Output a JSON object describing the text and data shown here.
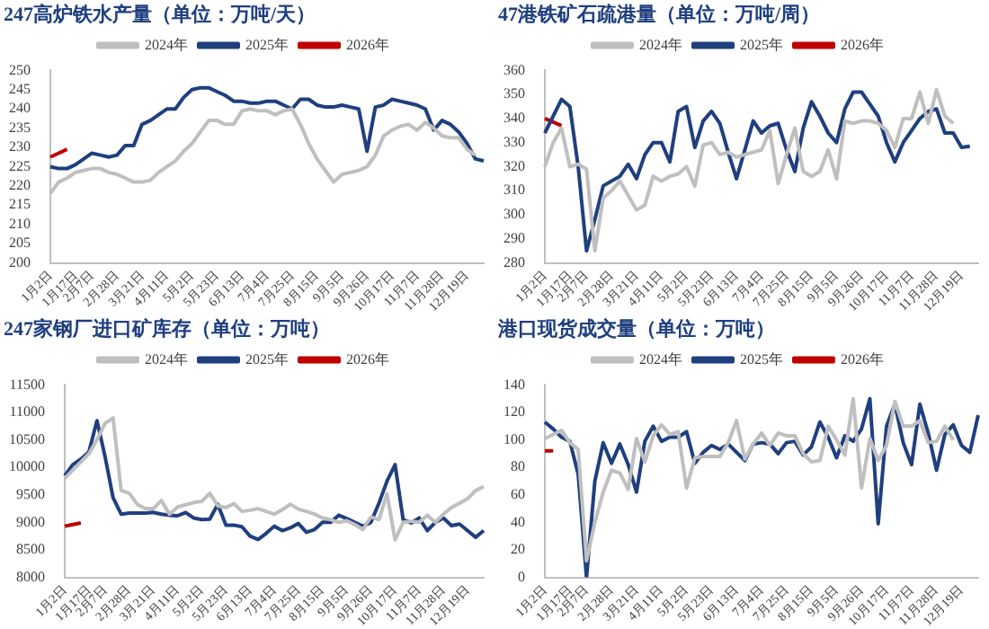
{
  "chart_data": [
    {
      "type": "line",
      "title": "247高炉铁水产量（单位：万吨/天）",
      "categories": [
        "1月2日",
        null,
        null,
        "1月17日",
        null,
        "2月7日",
        null,
        null,
        "2月28日",
        null,
        null,
        "3月21日",
        null,
        null,
        "4月11日",
        null,
        null,
        "5月2日",
        null,
        null,
        "5月23日",
        null,
        null,
        "6月13日",
        null,
        null,
        "7月4日",
        null,
        null,
        "7月25日",
        null,
        null,
        "8月15日",
        null,
        null,
        "9月5日",
        null,
        null,
        "9月26日",
        null,
        null,
        "10月17日",
        null,
        null,
        "11月7日",
        null,
        null,
        "11月28日",
        null,
        null,
        "12月19日",
        null,
        null
      ],
      "ylim": [
        200,
        250
      ],
      "yticks": [
        200,
        205,
        210,
        215,
        220,
        225,
        230,
        235,
        240,
        245,
        250
      ],
      "legend": "top",
      "grid": false,
      "marker": "none",
      "series": [
        {
          "name": "2024年",
          "color": "#bfbfbf",
          "values": [
            218,
            221,
            222,
            223.5,
            224,
            224.5,
            224.5,
            223.5,
            223,
            222,
            221,
            221,
            221.5,
            223.5,
            225,
            226.5,
            229,
            231,
            234,
            237,
            237,
            236,
            236,
            239.5,
            240,
            239.5,
            239.5,
            238.5,
            239.5,
            240,
            236,
            231,
            227,
            224,
            221,
            223,
            223.5,
            224,
            225,
            228,
            233,
            234.5,
            235.5,
            236,
            234.5,
            236.5,
            235,
            233,
            232.5,
            232.5,
            229.5,
            228,
            null
          ]
        },
        {
          "name": "2025年",
          "color": "#1f3f7f",
          "values": [
            225,
            224.5,
            224.5,
            225.5,
            227,
            228.5,
            228,
            227.5,
            228,
            230.5,
            230.5,
            236,
            237,
            238.5,
            240,
            240,
            243,
            245,
            245.5,
            245.5,
            244.5,
            243.5,
            242,
            242,
            241.5,
            241.5,
            242,
            242,
            241,
            240,
            242.5,
            242.5,
            241,
            240.5,
            240.5,
            241,
            240.5,
            240,
            229,
            240.5,
            241,
            242.5,
            242,
            241.5,
            241,
            240,
            234.5,
            237,
            236,
            234,
            231,
            227,
            226.5
          ]
        },
        {
          "name": "2026年",
          "color": "#c00000",
          "values": [
            227.5,
            228.5,
            229.5,
            null,
            null,
            null,
            null,
            null,
            null,
            null,
            null,
            null,
            null,
            null,
            null,
            null,
            null,
            null,
            null,
            null,
            null,
            null,
            null,
            null,
            null,
            null,
            null,
            null,
            null,
            null,
            null,
            null,
            null,
            null,
            null,
            null,
            null,
            null,
            null,
            null,
            null,
            null,
            null,
            null,
            null,
            null,
            null,
            null,
            null,
            null,
            null,
            null,
            null
          ]
        }
      ]
    },
    {
      "type": "line",
      "title": "47港铁矿石疏港量（单位：万吨/周）",
      "categories": [
        "1月2日",
        null,
        null,
        "1月17日",
        null,
        "2月7日",
        null,
        null,
        "2月28日",
        null,
        null,
        "3月21日",
        null,
        null,
        "4月11日",
        null,
        null,
        "5月2日",
        null,
        null,
        "5月23日",
        null,
        null,
        "6月13日",
        null,
        null,
        "7月4日",
        null,
        null,
        "7月25日",
        null,
        null,
        "8月15日",
        null,
        null,
        "9月5日",
        null,
        null,
        "9月26日",
        null,
        null,
        "10月17日",
        null,
        null,
        "11月7日",
        null,
        null,
        "11月28日",
        null,
        null,
        "12月19日",
        null,
        null
      ],
      "ylim": [
        280,
        360
      ],
      "yticks": [
        280,
        290,
        300,
        310,
        320,
        330,
        340,
        350,
        360
      ],
      "legend": "top",
      "grid": false,
      "marker": "none",
      "series": [
        {
          "name": "2024年",
          "color": "#bfbfbf",
          "values": [
            320,
            330,
            336,
            320,
            321,
            319,
            285,
            307,
            310,
            314,
            308,
            302,
            304,
            316,
            314,
            316,
            317,
            320,
            312,
            329,
            330,
            325,
            326,
            324,
            325,
            326,
            327,
            335,
            313,
            325,
            336,
            318,
            316,
            318,
            327,
            315,
            339,
            338,
            339,
            339,
            338,
            335,
            328,
            340,
            340,
            351,
            338,
            352,
            341,
            338,
            null,
            null,
            null
          ]
        },
        {
          "name": "2025年",
          "color": "#1f3f7f",
          "values": [
            334,
            341,
            348,
            345,
            320,
            285,
            298,
            312,
            314,
            316,
            321,
            315,
            325,
            330,
            330,
            322,
            343,
            345,
            328,
            339,
            343,
            338,
            326,
            315,
            327,
            339,
            334,
            337,
            338,
            327,
            318,
            336,
            347,
            341,
            334,
            330,
            344,
            351,
            351,
            346,
            341,
            330,
            322,
            330,
            335,
            340,
            343,
            344,
            334,
            334,
            328,
            328.5,
            null
          ]
        },
        {
          "name": "2026年",
          "color": "#c00000",
          "values": [
            340,
            338.5,
            337,
            null,
            null,
            null,
            null,
            null,
            null,
            null,
            null,
            null,
            null,
            null,
            null,
            null,
            null,
            null,
            null,
            null,
            null,
            null,
            null,
            null,
            null,
            null,
            null,
            null,
            null,
            null,
            null,
            null,
            null,
            null,
            null,
            null,
            null,
            null,
            null,
            null,
            null,
            null,
            null,
            null,
            null,
            null,
            null,
            null,
            null,
            null,
            null,
            null,
            null
          ]
        }
      ]
    },
    {
      "type": "line",
      "title": "247家钢厂进口矿库存（单位：万吨）",
      "categories": [
        "1月2日",
        null,
        null,
        "1月17日",
        null,
        "2月7日",
        null,
        null,
        "2月28日",
        null,
        null,
        "3月21日",
        null,
        null,
        "4月11日",
        null,
        null,
        "5月2日",
        null,
        null,
        "5月23日",
        null,
        null,
        "6月13日",
        null,
        null,
        "7月4日",
        null,
        null,
        "7月25日",
        null,
        null,
        "8月15日",
        null,
        null,
        "9月5日",
        null,
        null,
        "9月26日",
        null,
        null,
        "10月17日",
        null,
        null,
        "11月7日",
        null,
        null,
        "11月28日",
        null,
        null,
        "12月19日",
        null,
        null
      ],
      "ylim": [
        8000,
        11500
      ],
      "yticks": [
        8000,
        8500,
        9000,
        9500,
        10000,
        10500,
        11000,
        11500
      ],
      "legend": "top",
      "grid": false,
      "marker": "none",
      "series": [
        {
          "name": "2024年",
          "color": "#bfbfbf",
          "values": [
            9800,
            9950,
            10100,
            10250,
            10500,
            10800,
            10900,
            9580,
            9530,
            9330,
            9250,
            9250,
            9400,
            9150,
            9280,
            9320,
            9360,
            9380,
            9530,
            9300,
            9270,
            9340,
            9200,
            9220,
            9250,
            9200,
            9150,
            9230,
            9330,
            9240,
            9200,
            9150,
            9080,
            9050,
            9000,
            9030,
            8960,
            8870,
            9100,
            9050,
            9520,
            8680,
            9000,
            9020,
            9000,
            9130,
            9000,
            9150,
            9270,
            9350,
            9430,
            9580,
            9650
          ]
        },
        {
          "name": "2025年",
          "color": "#1f3f7f",
          "values": [
            9850,
            10050,
            10150,
            10280,
            10850,
            10200,
            9450,
            9150,
            9170,
            9170,
            9170,
            9180,
            9150,
            9130,
            9120,
            9180,
            9080,
            9050,
            9060,
            9330,
            8950,
            8950,
            8920,
            8750,
            8690,
            8800,
            8930,
            8850,
            8900,
            8980,
            8820,
            8870,
            9000,
            9000,
            9130,
            9070,
            9000,
            8930,
            9000,
            9350,
            9750,
            10050,
            9050,
            8990,
            9080,
            8850,
            9000,
            9080,
            8940,
            8970,
            8850,
            8730,
            8850
          ]
        },
        {
          "name": "2026年",
          "color": "#c00000",
          "values": [
            8930,
            8960,
            8990,
            null,
            null,
            null,
            null,
            null,
            null,
            null,
            null,
            null,
            null,
            null,
            null,
            null,
            null,
            null,
            null,
            null,
            null,
            null,
            null,
            null,
            null,
            null,
            null,
            null,
            null,
            null,
            null,
            null,
            null,
            null,
            null,
            null,
            null,
            null,
            null,
            null,
            null,
            null,
            null,
            null,
            null,
            null,
            null,
            null,
            null,
            null,
            null,
            null,
            null
          ]
        }
      ]
    },
    {
      "type": "line",
      "title": "港口现货成交量（单位：万吨）",
      "categories": [
        "1月2日",
        null,
        null,
        "1月17日",
        null,
        "2月7日",
        null,
        null,
        "2月28日",
        null,
        null,
        "3月21日",
        null,
        null,
        "4月11日",
        null,
        null,
        "5月2日",
        null,
        null,
        "5月23日",
        null,
        null,
        "6月13日",
        null,
        null,
        "7月4日",
        null,
        null,
        "7月25日",
        null,
        null,
        "8月15日",
        null,
        null,
        "9月5日",
        null,
        null,
        "9月26日",
        null,
        null,
        "10月17日",
        null,
        null,
        "11月7日",
        null,
        null,
        "11月28日",
        null,
        null,
        "12月19日",
        null,
        null
      ],
      "ylim": [
        0,
        140
      ],
      "yticks": [
        0,
        20,
        40,
        60,
        80,
        100,
        120,
        140
      ],
      "legend": "top",
      "grid": false,
      "marker": "none",
      "series": [
        {
          "name": "2024年",
          "color": "#bfbfbf",
          "values": [
            101,
            104,
            107,
            98,
            93,
            12,
            40,
            62,
            78,
            76,
            64,
            101,
            84,
            103,
            111,
            104,
            106,
            65,
            87,
            88,
            88,
            88,
            98,
            114,
            86,
            97,
            105,
            96,
            105,
            103,
            103,
            90,
            84,
            85,
            110,
            100,
            89,
            130,
            65,
            101,
            85,
            96,
            128,
            110,
            110,
            114,
            98,
            99,
            110,
            100,
            null,
            null,
            null
          ]
        },
        {
          "name": "2025年",
          "color": "#1f3f7f",
          "values": [
            113,
            108,
            102,
            99,
            75,
            0,
            70,
            98,
            83,
            97,
            82,
            62,
            99,
            110,
            99,
            102,
            102,
            106,
            83,
            91,
            96,
            93,
            97,
            91,
            85,
            97,
            98,
            97,
            90,
            98,
            99,
            89,
            95,
            113,
            102,
            87,
            103,
            99,
            108,
            130,
            39,
            110,
            126,
            98,
            82,
            126,
            105,
            78,
            104,
            111,
            96,
            91,
            118
          ]
        },
        {
          "name": "2026年",
          "color": "#c00000",
          "values": [
            92,
            92,
            null,
            null,
            null,
            null,
            null,
            null,
            null,
            null,
            null,
            null,
            null,
            null,
            null,
            null,
            null,
            null,
            null,
            null,
            null,
            null,
            null,
            null,
            null,
            null,
            null,
            null,
            null,
            null,
            null,
            null,
            null,
            null,
            null,
            null,
            null,
            null,
            null,
            null,
            null,
            null,
            null,
            null,
            null,
            null,
            null,
            null,
            null,
            null,
            null,
            null,
            null
          ]
        }
      ]
    }
  ]
}
